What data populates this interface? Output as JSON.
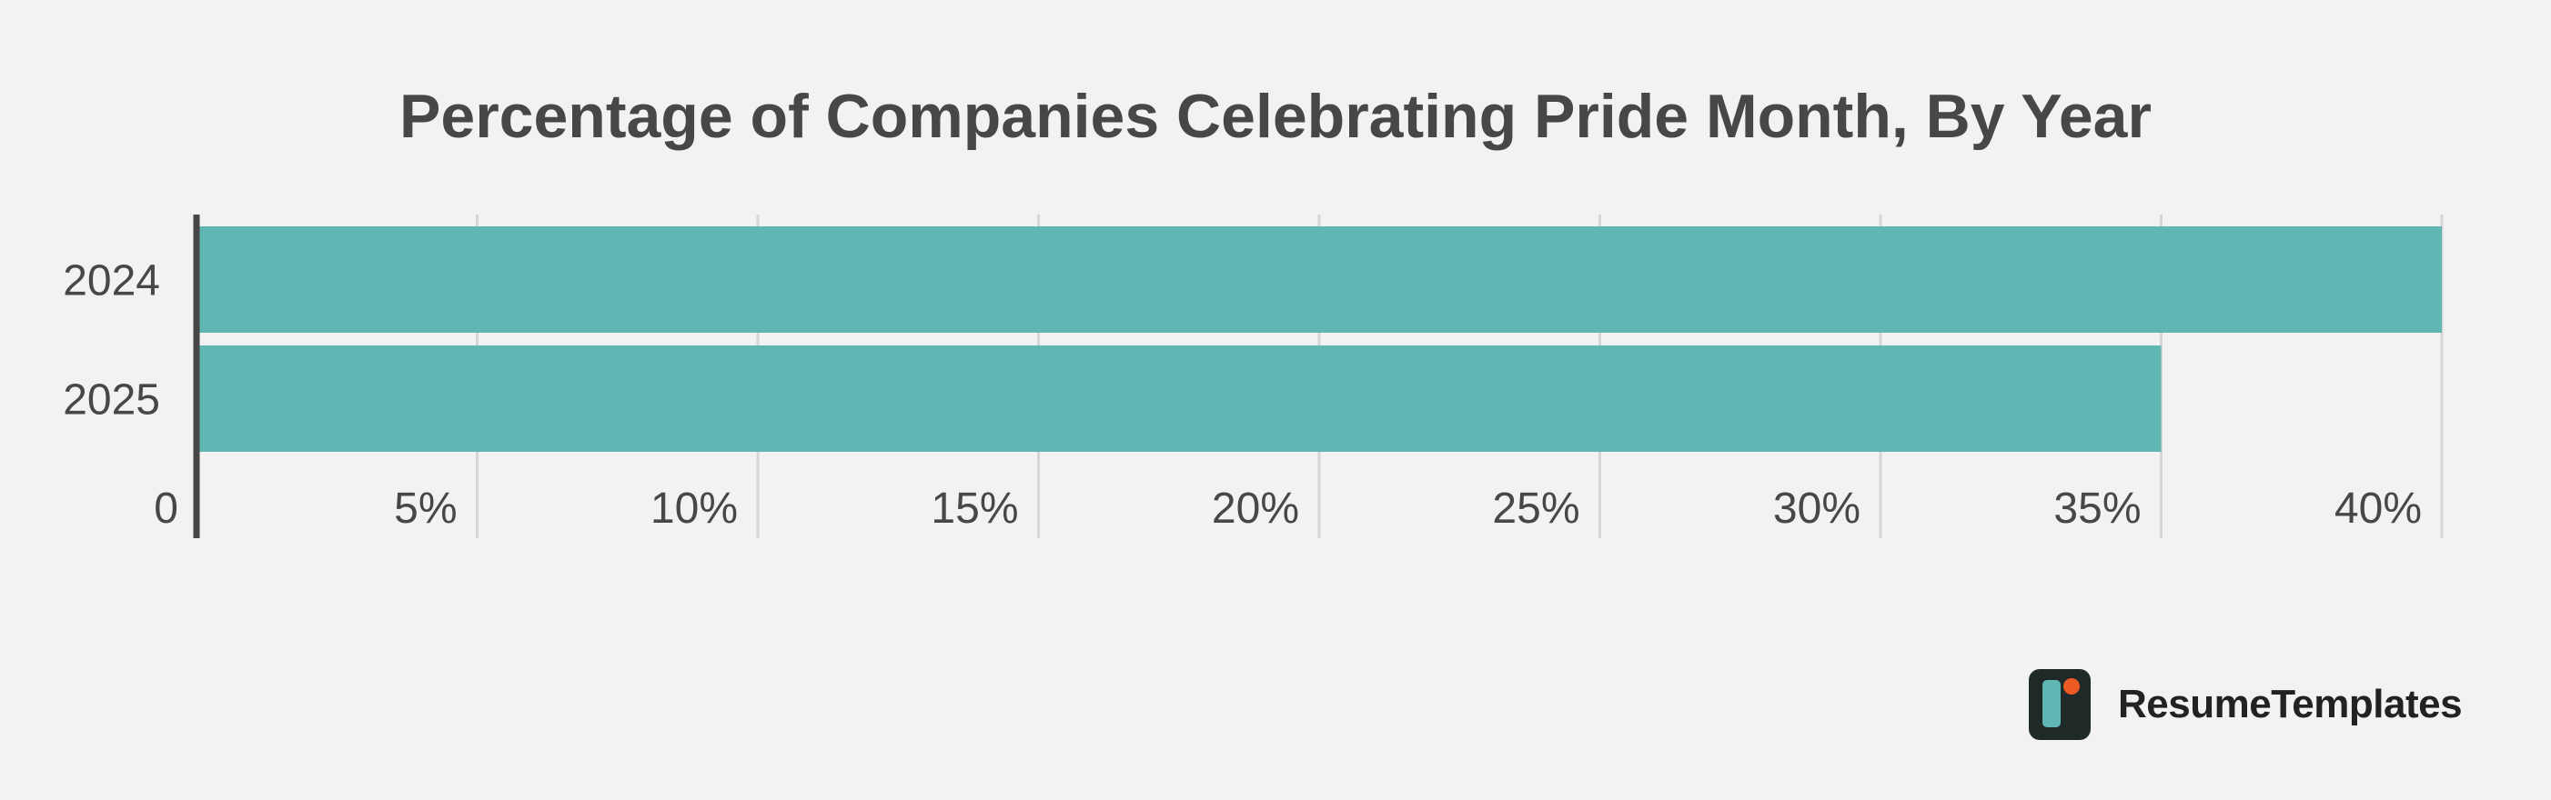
{
  "chart_data": {
    "type": "bar",
    "orientation": "horizontal",
    "title": "Percentage of Companies Celebrating Pride Month, By Year",
    "categories": [
      "2024",
      "2025"
    ],
    "values": [
      40,
      35
    ],
    "unit": "%",
    "xlim": [
      0,
      40
    ],
    "xticks": [
      0,
      5,
      10,
      15,
      20,
      25,
      30,
      35,
      40
    ],
    "xtick_labels": [
      "0",
      "5%",
      "10%",
      "15%",
      "20%",
      "25%",
      "30%",
      "35%",
      "40%"
    ],
    "grid": "vertical",
    "legend": "none",
    "bar_color": "#5fb6b2"
  },
  "brand": {
    "name": "ResumeTemplates",
    "logo_icon": "resumetemplates-logo-icon",
    "logo_colors": {
      "background": "#1f2a28",
      "bar": "#5fb6b2",
      "dot": "#ee5a24"
    }
  }
}
